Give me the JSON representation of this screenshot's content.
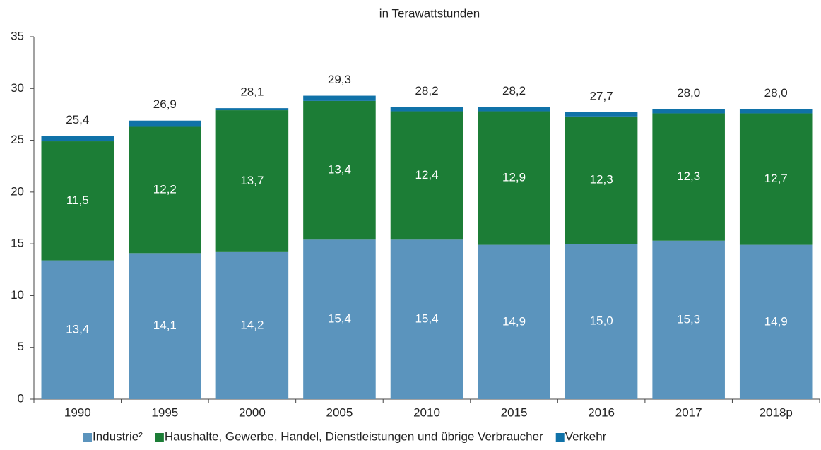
{
  "chart_data": {
    "type": "stacked_bar",
    "title": "in Terawattstunden",
    "categories": [
      "1990",
      "1995",
      "2000",
      "2005",
      "2010",
      "2015",
      "2016",
      "2017",
      "2018p"
    ],
    "series": [
      {
        "name": "Industrie²",
        "color": "#5b94bd",
        "values": [
          13.4,
          14.1,
          14.2,
          15.4,
          15.4,
          14.9,
          15.0,
          15.3,
          14.9
        ],
        "value_labels": [
          "13,4",
          "14,1",
          "14,2",
          "15,4",
          "15,4",
          "14,9",
          "15,0",
          "15,3",
          "14,9"
        ]
      },
      {
        "name": "Haushalte, Gewerbe, Handel, Dienstleistungen und übrige Verbraucher",
        "color": "#1c7d36",
        "values": [
          11.5,
          12.2,
          13.7,
          13.4,
          12.4,
          12.9,
          12.3,
          12.3,
          12.7
        ],
        "value_labels": [
          "11,5",
          "12,2",
          "13,7",
          "13,4",
          "12,4",
          "12,9",
          "12,3",
          "12,3",
          "12,7"
        ]
      },
      {
        "name": "Verkehr",
        "color": "#1072a8",
        "values": [
          0.5,
          0.6,
          0.2,
          0.5,
          0.4,
          0.4,
          0.4,
          0.4,
          0.4
        ]
      }
    ],
    "totals": [
      25.4,
      26.9,
      28.1,
      29.3,
      28.2,
      28.2,
      27.7,
      28.0,
      28.0
    ],
    "total_labels": [
      "25,4",
      "26,9",
      "28,1",
      "29,3",
      "28,2",
      "28,2",
      "27,7",
      "28,0",
      "28,0"
    ],
    "ylim": [
      0,
      35
    ],
    "yticks": [
      0,
      5,
      10,
      15,
      20,
      25,
      30,
      35
    ]
  }
}
